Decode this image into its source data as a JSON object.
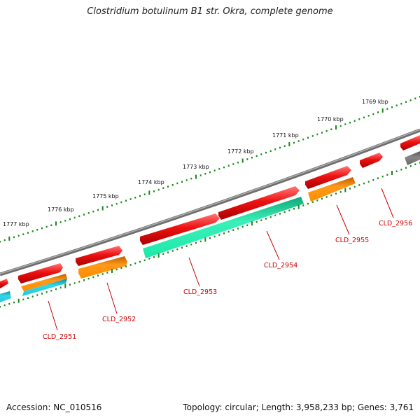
{
  "title": "Clostridium botulinum B1 str. Okra, complete genome",
  "footer": {
    "accession": "Accession: NC_010516",
    "summary": "Topology: circular; Length: 3,958,233 bp; Genes: 3,761"
  },
  "colors": {
    "cds_forward": "#ee1111",
    "gene_reverse": "#ff8c00",
    "cds_cyan": "#22c8d8",
    "cds_green": "#1ee8a8",
    "pseudo_gray": "#777777",
    "backbone": "#888888",
    "ticks": "#1a8a1a",
    "gene_label": "#cc0000"
  },
  "scale_labels": [
    "1777 kbp",
    "1776 kbp",
    "1775 kbp",
    "1774 kbp",
    "1773 kbp",
    "1772 kbp",
    "1771 kbp",
    "1770 kbp",
    "1769 kbp"
  ],
  "gene_labels": [
    "CLD_2951",
    "CLD_2952",
    "CLD_2953",
    "CLD_2954",
    "CLD_2955",
    "CLD_2956"
  ]
}
